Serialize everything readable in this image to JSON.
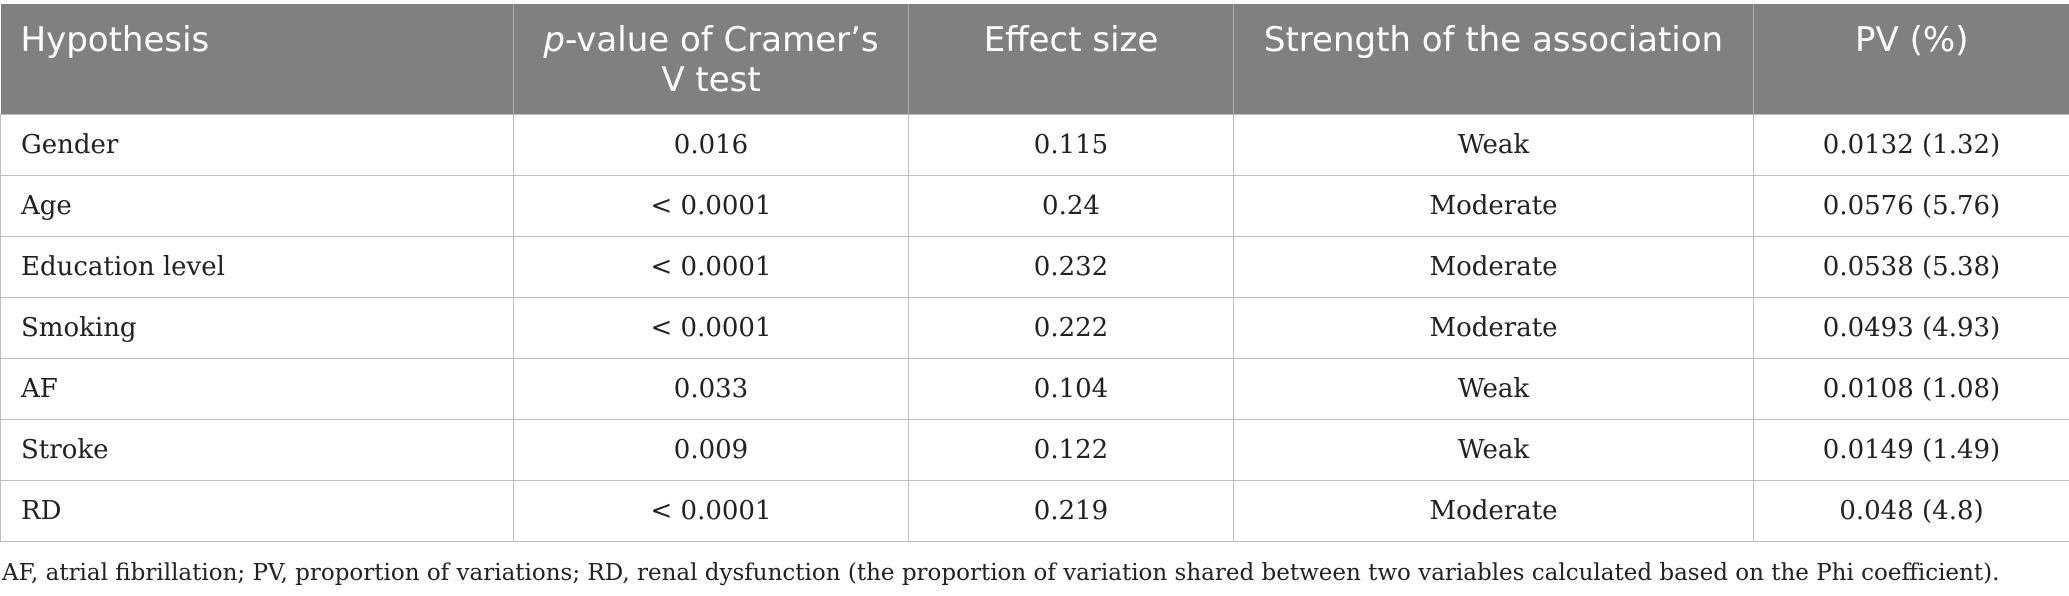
{
  "table": {
    "headers": {
      "hypothesis": "Hypothesis",
      "pvalue_italic": "p",
      "pvalue_rest": "-value of Cramer’s V test",
      "effect_size": "Effect size",
      "strength": "Strength of the association",
      "pv": "PV (%)"
    },
    "rows": [
      {
        "hypothesis": "Gender",
        "pvalue": "0.016",
        "effect_size": "0.115",
        "strength": "Weak",
        "pv": "0.0132 (1.32)"
      },
      {
        "hypothesis": "Age",
        "pvalue": "< 0.0001",
        "effect_size": "0.24",
        "strength": "Moderate",
        "pv": "0.0576 (5.76)"
      },
      {
        "hypothesis": "Education level",
        "pvalue": "< 0.0001",
        "effect_size": "0.232",
        "strength": "Moderate",
        "pv": "0.0538 (5.38)"
      },
      {
        "hypothesis": "Smoking",
        "pvalue": "< 0.0001",
        "effect_size": "0.222",
        "strength": "Moderate",
        "pv": "0.0493 (4.93)"
      },
      {
        "hypothesis": "AF",
        "pvalue": "0.033",
        "effect_size": "0.104",
        "strength": "Weak",
        "pv": "0.0108 (1.08)"
      },
      {
        "hypothesis": "Stroke",
        "pvalue": "0.009",
        "effect_size": "0.122",
        "strength": "Weak",
        "pv": "0.0149 (1.49)"
      },
      {
        "hypothesis": "RD",
        "pvalue": "< 0.0001",
        "effect_size": "0.219",
        "strength": "Moderate",
        "pv": "0.048 (4.8)"
      }
    ]
  },
  "footnote": "AF, atrial fibrillation; PV, proportion of variations; RD, renal dysfunction (the proportion of variation shared between two variables calculated based on the Phi coefficient).",
  "colors": {
    "header_background": "#7f817f",
    "header_text": "#ffffff",
    "grid_lines": "#bdbdbd"
  }
}
